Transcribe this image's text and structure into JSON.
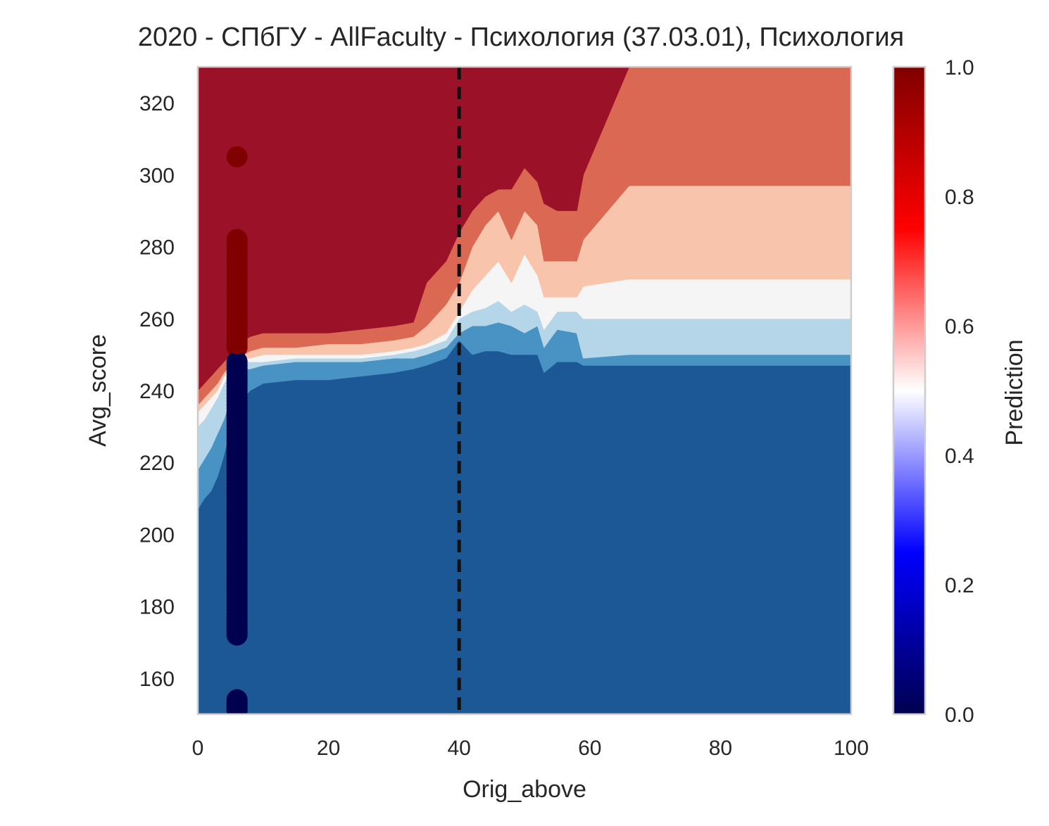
{
  "chart_data": {
    "type": "contour",
    "title": "2020 - СПбГУ - AllFaculty - Психология (37.03.01), Психология",
    "xlabel": "Orig_above",
    "ylabel": "Avg_score",
    "xlim": [
      0,
      100
    ],
    "ylim": [
      150,
      330
    ],
    "xticks": [
      "0",
      "20",
      "40",
      "60",
      "80",
      "100"
    ],
    "yticks": [
      "160",
      "180",
      "200",
      "220",
      "240",
      "260",
      "280",
      "300",
      "320"
    ],
    "grid": false,
    "threshold_line": {
      "x": 40,
      "style": "dashed",
      "color": "#111111"
    },
    "contour_levels": [
      {
        "level": "0.0-0.2",
        "color": "#1c5796"
      },
      {
        "level": "0.2-0.35",
        "color": "#4893c3"
      },
      {
        "level": "0.35-0.5",
        "color": "#b5d6e8"
      },
      {
        "level": "0.5-0.6",
        "color": "#f5f5f5"
      },
      {
        "level": "0.6-0.75",
        "color": "#f8c4ab"
      },
      {
        "level": "0.75-0.9",
        "color": "#da6853"
      },
      {
        "level": "0.9-1.0",
        "color": "#9b1228"
      }
    ],
    "boundaries": [
      {
        "name": "b1",
        "points": [
          [
            0,
            207
          ],
          [
            1,
            210
          ],
          [
            2,
            212
          ],
          [
            3,
            216
          ],
          [
            4,
            222
          ],
          [
            5,
            230
          ],
          [
            6,
            236
          ],
          [
            7,
            238
          ],
          [
            8,
            240
          ],
          [
            10,
            242
          ],
          [
            15,
            243
          ],
          [
            20,
            243
          ],
          [
            25,
            244
          ],
          [
            30,
            245
          ],
          [
            33,
            246
          ],
          [
            35,
            247
          ],
          [
            38,
            249
          ],
          [
            40,
            254
          ],
          [
            42,
            250
          ],
          [
            44,
            251
          ],
          [
            46,
            251
          ],
          [
            48,
            250
          ],
          [
            50,
            250
          ],
          [
            52,
            250
          ],
          [
            53,
            245
          ],
          [
            55,
            248
          ],
          [
            58,
            248
          ],
          [
            59,
            247
          ],
          [
            66,
            247
          ],
          [
            82,
            247
          ],
          [
            100,
            247
          ]
        ]
      },
      {
        "name": "b2",
        "points": [
          [
            0,
            218
          ],
          [
            1,
            221
          ],
          [
            2,
            224
          ],
          [
            3,
            228
          ],
          [
            4,
            232
          ],
          [
            5,
            238
          ],
          [
            6,
            244
          ],
          [
            7,
            246
          ],
          [
            8,
            246
          ],
          [
            10,
            247
          ],
          [
            15,
            248
          ],
          [
            20,
            248
          ],
          [
            25,
            248
          ],
          [
            30,
            249
          ],
          [
            33,
            249
          ],
          [
            35,
            250
          ],
          [
            38,
            252
          ],
          [
            40,
            256
          ],
          [
            42,
            258
          ],
          [
            44,
            258
          ],
          [
            46,
            259
          ],
          [
            48,
            258
          ],
          [
            50,
            256
          ],
          [
            52,
            258
          ],
          [
            53,
            252
          ],
          [
            55,
            257
          ],
          [
            58,
            256
          ],
          [
            59,
            249
          ],
          [
            66,
            250
          ],
          [
            82,
            250
          ],
          [
            100,
            250
          ]
        ]
      },
      {
        "name": "b3",
        "points": [
          [
            0,
            230
          ],
          [
            1,
            232
          ],
          [
            2,
            235
          ],
          [
            3,
            238
          ],
          [
            4,
            242
          ],
          [
            5,
            245
          ],
          [
            6,
            247
          ],
          [
            7,
            248
          ],
          [
            8,
            248
          ],
          [
            10,
            248
          ],
          [
            15,
            249
          ],
          [
            20,
            249
          ],
          [
            25,
            249
          ],
          [
            30,
            250
          ],
          [
            33,
            251
          ],
          [
            35,
            252
          ],
          [
            38,
            254
          ],
          [
            40,
            260
          ],
          [
            42,
            262
          ],
          [
            44,
            263
          ],
          [
            46,
            265
          ],
          [
            48,
            262
          ],
          [
            50,
            264
          ],
          [
            52,
            262
          ],
          [
            53,
            257
          ],
          [
            55,
            262
          ],
          [
            58,
            262
          ],
          [
            59,
            260
          ],
          [
            66,
            260
          ],
          [
            82,
            260
          ],
          [
            100,
            260
          ]
        ]
      },
      {
        "name": "b4",
        "points": [
          [
            0,
            234
          ],
          [
            1,
            236
          ],
          [
            2,
            238
          ],
          [
            3,
            240
          ],
          [
            4,
            244
          ],
          [
            5,
            246
          ],
          [
            6,
            248
          ],
          [
            7,
            249
          ],
          [
            8,
            249
          ],
          [
            10,
            250
          ],
          [
            15,
            250
          ],
          [
            20,
            250
          ],
          [
            25,
            250
          ],
          [
            30,
            251
          ],
          [
            33,
            252
          ],
          [
            35,
            253
          ],
          [
            38,
            256
          ],
          [
            40,
            262
          ],
          [
            42,
            268
          ],
          [
            44,
            272
          ],
          [
            46,
            276
          ],
          [
            48,
            270
          ],
          [
            50,
            278
          ],
          [
            52,
            272
          ],
          [
            53,
            266
          ],
          [
            55,
            266
          ],
          [
            58,
            266
          ],
          [
            59,
            269
          ],
          [
            66,
            271
          ],
          [
            82,
            271
          ],
          [
            100,
            271
          ]
        ]
      },
      {
        "name": "b5",
        "points": [
          [
            0,
            236
          ],
          [
            1,
            238
          ],
          [
            2,
            240
          ],
          [
            3,
            242
          ],
          [
            4,
            245
          ],
          [
            5,
            247
          ],
          [
            6,
            249
          ],
          [
            7,
            250
          ],
          [
            8,
            251
          ],
          [
            10,
            252
          ],
          [
            15,
            252
          ],
          [
            20,
            253
          ],
          [
            25,
            253
          ],
          [
            30,
            254
          ],
          [
            33,
            255
          ],
          [
            35,
            258
          ],
          [
            38,
            264
          ],
          [
            40,
            270
          ],
          [
            42,
            280
          ],
          [
            44,
            286
          ],
          [
            46,
            290
          ],
          [
            48,
            282
          ],
          [
            50,
            290
          ],
          [
            52,
            286
          ],
          [
            53,
            276
          ],
          [
            55,
            276
          ],
          [
            58,
            276
          ],
          [
            59,
            282
          ],
          [
            66,
            297
          ],
          [
            82,
            297
          ],
          [
            100,
            297
          ]
        ]
      },
      {
        "name": "b6",
        "points": [
          [
            0,
            240
          ],
          [
            1,
            242
          ],
          [
            2,
            244
          ],
          [
            3,
            246
          ],
          [
            4,
            248
          ],
          [
            5,
            250
          ],
          [
            6,
            252
          ],
          [
            7,
            254
          ],
          [
            8,
            255
          ],
          [
            10,
            256
          ],
          [
            15,
            256
          ],
          [
            20,
            256
          ],
          [
            25,
            257
          ],
          [
            30,
            258
          ],
          [
            33,
            259
          ],
          [
            35,
            270
          ],
          [
            38,
            276
          ],
          [
            40,
            284
          ],
          [
            42,
            290
          ],
          [
            44,
            294
          ],
          [
            46,
            296
          ],
          [
            48,
            296
          ],
          [
            50,
            302
          ],
          [
            52,
            298
          ],
          [
            53,
            292
          ],
          [
            55,
            290
          ],
          [
            58,
            290
          ],
          [
            59,
            300
          ],
          [
            66,
            330
          ],
          [
            82,
            330
          ],
          [
            100,
            330
          ]
        ]
      }
    ],
    "scatter": {
      "x": 6,
      "points": [
        {
          "y": 305,
          "value": 1
        },
        {
          "y": 282,
          "value": 1
        },
        {
          "y": 276,
          "value": 1
        },
        {
          "y": 270,
          "value": 1
        },
        {
          "y": 264,
          "value": 1
        },
        {
          "y": 258,
          "value": 1
        },
        {
          "y": 252,
          "value": 1
        },
        {
          "y": 248,
          "value": 0
        },
        {
          "y": 242,
          "value": 0
        },
        {
          "y": 236,
          "value": 0
        },
        {
          "y": 230,
          "value": 0
        },
        {
          "y": 224,
          "value": 0
        },
        {
          "y": 218,
          "value": 0
        },
        {
          "y": 212,
          "value": 0
        },
        {
          "y": 206,
          "value": 0
        },
        {
          "y": 200,
          "value": 0
        },
        {
          "y": 194,
          "value": 0
        },
        {
          "y": 188,
          "value": 0
        },
        {
          "y": 182,
          "value": 0
        },
        {
          "y": 176,
          "value": 0
        },
        {
          "y": 172,
          "value": 0
        },
        {
          "y": 154,
          "value": 0
        },
        {
          "y": 151,
          "value": 0
        }
      ]
    },
    "colorbar": {
      "label": "Prediction",
      "range": [
        0,
        1
      ],
      "ticks": [
        "0.0",
        "0.2",
        "0.4",
        "0.6",
        "0.8",
        "1.0"
      ],
      "stops": [
        {
          "offset": 0,
          "color": "#000050"
        },
        {
          "offset": 0.25,
          "color": "#0000ff"
        },
        {
          "offset": 0.5,
          "color": "#ffffff"
        },
        {
          "offset": 0.75,
          "color": "#ff0000"
        },
        {
          "offset": 1,
          "color": "#800000"
        }
      ]
    }
  }
}
